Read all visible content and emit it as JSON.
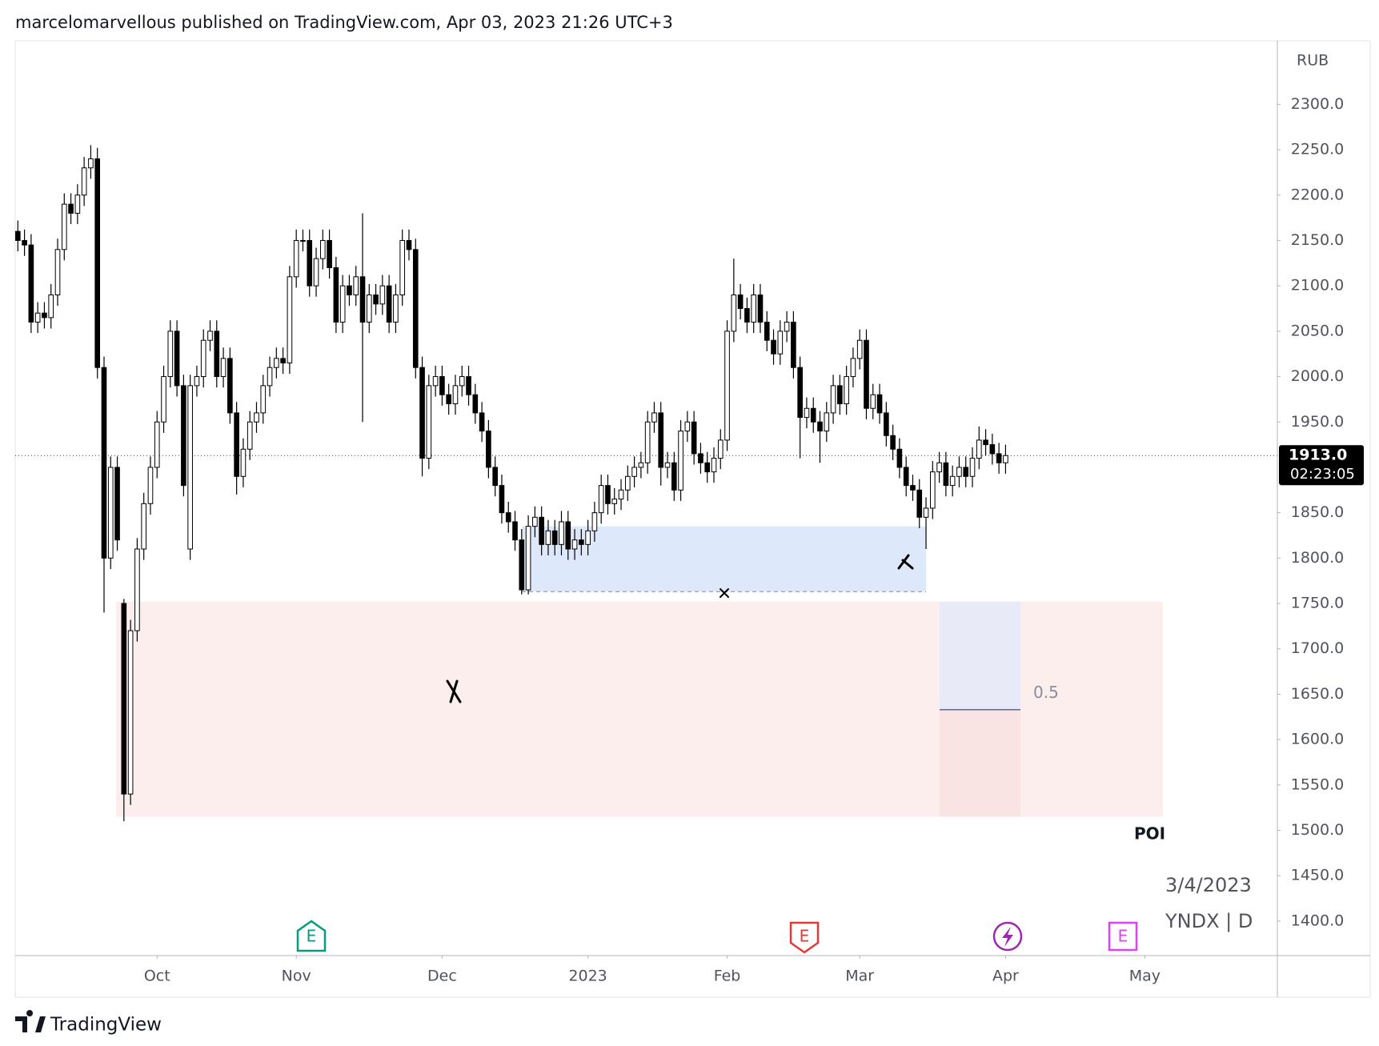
{
  "header": {
    "publisher": "marcelomarvellous published on TradingView.com, Apr 03, 2023 21:26 UTC+3"
  },
  "chart_data": {
    "type": "candlestick",
    "currency": "RUB",
    "open": [
      2160,
      2150,
      2145,
      2060,
      2070,
      2065,
      2090,
      2140,
      2190,
      2180,
      2200,
      2230,
      2240,
      2010,
      1800,
      1900,
      1750,
      1540,
      1720,
      1810,
      1860,
      1900,
      1950,
      2000,
      2050,
      1990,
      1810,
      1990,
      2000,
      2040,
      2050,
      2000,
      2020,
      1960,
      1890,
      1920,
      1950,
      1960,
      1990,
      2010,
      2020,
      2015,
      2110,
      2150,
      2150,
      2100,
      2130,
      2150,
      2120,
      2060,
      2100,
      2090,
      2110,
      2060,
      2090,
      2080,
      2100,
      2060,
      2090,
      2150,
      2140,
      2010,
      1910,
      1990,
      2000,
      1980,
      1970,
      1990,
      2000,
      1980,
      1960,
      1940,
      1900,
      1880,
      1850,
      1840,
      1820,
      1765,
      1835,
      1845,
      1815,
      1830,
      1815,
      1840,
      1810,
      1820,
      1815,
      1830,
      1850,
      1880,
      1860,
      1865,
      1875,
      1890,
      1900,
      1905,
      1950,
      1960,
      1900,
      1905,
      1875,
      1940,
      1950,
      1915,
      1905,
      1895,
      1910,
      1930,
      2050,
      2090,
      2075,
      2060,
      2090,
      2060,
      2040,
      2025,
      2050,
      2060,
      2010,
      1955,
      1965,
      1950,
      1940,
      1960,
      1990,
      1970,
      2000,
      2020,
      2040,
      1965,
      1980,
      1960,
      1935,
      1920,
      1900,
      1880,
      1875,
      1845,
      1855,
      1895,
      1905,
      1880,
      1890,
      1900,
      1890,
      1910,
      1930,
      1925,
      1915,
      1905
    ],
    "high": [
      2172,
      2162,
      2157,
      2082,
      2082,
      2102,
      2152,
      2202,
      2202,
      2212,
      2242,
      2255,
      2252,
      2022,
      1912,
      1912,
      1755,
      1732,
      1822,
      1872,
      1912,
      1962,
      2012,
      2062,
      2062,
      2002,
      2002,
      2012,
      2052,
      2062,
      2062,
      2032,
      2032,
      1972,
      1932,
      1962,
      1972,
      2002,
      2022,
      2032,
      2032,
      2122,
      2162,
      2162,
      2162,
      2142,
      2162,
      2162,
      2132,
      2112,
      2112,
      2122,
      2180,
      2102,
      2102,
      2112,
      2112,
      2102,
      2162,
      2162,
      2152,
      2022,
      2002,
      2012,
      2012,
      1992,
      2002,
      2012,
      2012,
      1992,
      1972,
      1952,
      1912,
      1892,
      1862,
      1852,
      1832,
      1847,
      1857,
      1857,
      1842,
      1842,
      1852,
      1852,
      1832,
      1832,
      1842,
      1862,
      1892,
      1892,
      1877,
      1887,
      1902,
      1912,
      1917,
      1962,
      1972,
      1972,
      1917,
      1917,
      1952,
      1962,
      1962,
      1927,
      1917,
      1922,
      1942,
      2062,
      2130,
      2102,
      2087,
      2102,
      2102,
      2072,
      2052,
      2062,
      2072,
      2072,
      2022,
      1977,
      1977,
      1962,
      1972,
      2002,
      2002,
      2012,
      2032,
      2052,
      2052,
      1992,
      1992,
      1972,
      1947,
      1932,
      1912,
      1892,
      1887,
      1867,
      1907,
      1917,
      1917,
      1902,
      1912,
      1912,
      1922,
      1945,
      1942,
      1937,
      1927,
      1925
    ],
    "low": [
      2138,
      2133,
      2048,
      2048,
      2053,
      2053,
      2078,
      2128,
      2168,
      2168,
      2188,
      2218,
      1998,
      1740,
      1788,
      1808,
      1510,
      1528,
      1708,
      1798,
      1848,
      1888,
      1938,
      1988,
      1978,
      1868,
      1798,
      1978,
      1988,
      2028,
      1988,
      1988,
      1948,
      1870,
      1878,
      1908,
      1938,
      1948,
      1978,
      1998,
      2003,
      2003,
      2098,
      2138,
      2088,
      2088,
      2118,
      2108,
      2048,
      2048,
      2078,
      2078,
      1950,
      2048,
      2068,
      2068,
      2048,
      2048,
      2078,
      2128,
      1998,
      1890,
      1898,
      1978,
      1968,
      1958,
      1958,
      1978,
      1968,
      1948,
      1928,
      1888,
      1868,
      1838,
      1828,
      1808,
      1760,
      1760,
      1823,
      1803,
      1803,
      1803,
      1803,
      1798,
      1798,
      1803,
      1803,
      1818,
      1838,
      1848,
      1848,
      1853,
      1863,
      1878,
      1888,
      1893,
      1938,
      1880,
      1888,
      1863,
      1863,
      1928,
      1903,
      1893,
      1883,
      1883,
      1898,
      1918,
      2038,
      2063,
      2048,
      2048,
      2048,
      2028,
      2013,
      2013,
      2038,
      1998,
      1910,
      1943,
      1938,
      1905,
      1928,
      1948,
      1958,
      1958,
      1988,
      2008,
      1953,
      1953,
      1948,
      1923,
      1908,
      1888,
      1868,
      1863,
      1833,
      1810,
      1843,
      1883,
      1868,
      1868,
      1878,
      1878,
      1878,
      1898,
      1913,
      1903,
      1893,
      1893
    ],
    "close": [
      2150,
      2145,
      2060,
      2070,
      2065,
      2090,
      2140,
      2190,
      2180,
      2200,
      2230,
      2240,
      2010,
      1800,
      1900,
      1820,
      1540,
      1720,
      1810,
      1860,
      1900,
      1950,
      2000,
      2050,
      1990,
      1880,
      1990,
      2000,
      2040,
      2050,
      2000,
      2020,
      1960,
      1890,
      1920,
      1950,
      1960,
      1990,
      2010,
      2020,
      2015,
      2110,
      2150,
      2150,
      2100,
      2130,
      2150,
      2120,
      2060,
      2100,
      2090,
      2110,
      2060,
      2090,
      2080,
      2100,
      2060,
      2090,
      2150,
      2140,
      2010,
      1910,
      1990,
      2000,
      1980,
      1970,
      1990,
      2000,
      1980,
      1960,
      1940,
      1900,
      1880,
      1850,
      1840,
      1820,
      1765,
      1835,
      1845,
      1815,
      1830,
      1815,
      1840,
      1810,
      1820,
      1815,
      1830,
      1850,
      1880,
      1860,
      1865,
      1875,
      1890,
      1900,
      1905,
      1950,
      1960,
      1900,
      1905,
      1875,
      1940,
      1950,
      1915,
      1905,
      1895,
      1910,
      1930,
      2050,
      2090,
      2075,
      2060,
      2090,
      2060,
      2040,
      2025,
      2050,
      2060,
      2010,
      1955,
      1965,
      1950,
      1940,
      1960,
      1990,
      1970,
      2000,
      2020,
      2040,
      1965,
      1980,
      1960,
      1935,
      1920,
      1900,
      1880,
      1875,
      1845,
      1855,
      1895,
      1905,
      1880,
      1890,
      1900,
      1890,
      1910,
      1930,
      1925,
      1915,
      1905,
      1913
    ],
    "up_color": "#ffffff",
    "down_color": "#000000",
    "xlim": [
      -0.4,
      190
    ],
    "xticks": [
      {
        "value": 21,
        "label": "Oct"
      },
      {
        "value": 42,
        "label": "Nov"
      },
      {
        "value": 64,
        "label": "Dec"
      },
      {
        "value": 86,
        "label": "2023"
      },
      {
        "value": 107,
        "label": "Feb"
      },
      {
        "value": 127,
        "label": "Mar"
      },
      {
        "value": 149,
        "label": "Apr"
      },
      {
        "value": 170,
        "label": "May"
      }
    ],
    "ylim": [
      1362,
      2370
    ],
    "yticks": [
      {
        "value": 2300,
        "label": "2300.0"
      },
      {
        "value": 2250,
        "label": "2250.0"
      },
      {
        "value": 2200,
        "label": "2200.0"
      },
      {
        "value": 2150,
        "label": "2150.0"
      },
      {
        "value": 2100,
        "label": "2100.0"
      },
      {
        "value": 2050,
        "label": "2050.0"
      },
      {
        "value": 2000,
        "label": "2000.0"
      },
      {
        "value": 1950,
        "label": "1950.0"
      },
      {
        "value": 1850,
        "label": "1850.0"
      },
      {
        "value": 1800,
        "label": "1800.0"
      },
      {
        "value": 1750,
        "label": "1750.0"
      },
      {
        "value": 1700,
        "label": "1700.0"
      },
      {
        "value": 1650,
        "label": "1650.0"
      },
      {
        "value": 1600,
        "label": "1600.0"
      },
      {
        "value": 1550,
        "label": "1550.0"
      },
      {
        "value": 1500,
        "label": "1500.0"
      },
      {
        "value": 1450,
        "label": "1450.0"
      },
      {
        "value": 1400,
        "label": "1400.0"
      }
    ],
    "grid": false,
    "last_price": {
      "value": 1913,
      "label": "1913.0"
    },
    "countdown": "02:23:05",
    "zones": [
      {
        "low": 1763,
        "high": 1835,
        "color": "#dde9fa"
      },
      {
        "low": 1515,
        "high": 1752,
        "color": "#fdeeee"
      }
    ],
    "fib": {
      "value": 1633,
      "label": "0.5",
      "upper_color": "#e8eaf8",
      "lower_color": "#fae3e3"
    },
    "poi": "POI",
    "date_label": "3/4/2023",
    "symbol": "YNDX | D",
    "events": [
      {
        "label": "E",
        "color": "#089981"
      },
      {
        "label": "E",
        "color": "#e53935"
      },
      {
        "label": "E",
        "color": "#e040fb"
      }
    ]
  },
  "footer": {
    "brand": "TradingView"
  }
}
